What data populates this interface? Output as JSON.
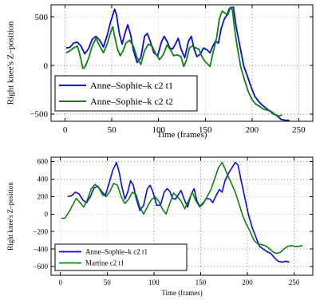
{
  "chart_data": [
    {
      "type": "line",
      "xlabel": "Time (frames)",
      "ylabel": "Right knee's Z–position",
      "xlim": [
        -15,
        265
      ],
      "ylim": [
        -575,
        625
      ],
      "xticks": [
        0,
        50,
        100,
        150,
        200,
        250
      ],
      "yticks": [
        -500,
        0,
        500
      ],
      "grid": true,
      "legend_position": "lower-left",
      "series": [
        {
          "name": "Anne–Sophie–k c2 t1",
          "color": "#0a0adc",
          "points": [
            [
              1,
              180
            ],
            [
              5,
              185
            ],
            [
              9,
              230
            ],
            [
              13,
              240
            ],
            [
              17,
              200
            ],
            [
              21,
              120
            ],
            [
              25,
              170
            ],
            [
              29,
              270
            ],
            [
              33,
              300
            ],
            [
              37,
              260
            ],
            [
              41,
              190
            ],
            [
              45,
              310
            ],
            [
              49,
              460
            ],
            [
              53,
              580
            ],
            [
              55,
              520
            ],
            [
              58,
              330
            ],
            [
              61,
              220
            ],
            [
              64,
              330
            ],
            [
              67,
              420
            ],
            [
              70,
              320
            ],
            [
              73,
              160
            ],
            [
              77,
              30
            ],
            [
              81,
              80
            ],
            [
              85,
              300
            ],
            [
              88,
              330
            ],
            [
              91,
              250
            ],
            [
              95,
              130
            ],
            [
              99,
              100
            ],
            [
              103,
              240
            ],
            [
              106,
              300
            ],
            [
              109,
              250
            ],
            [
              112,
              180
            ],
            [
              115,
              170
            ],
            [
              118,
              220
            ],
            [
              121,
              280
            ],
            [
              124,
              170
            ],
            [
              128,
              80
            ],
            [
              132,
              250
            ],
            [
              135,
              300
            ],
            [
              138,
              170
            ],
            [
              141,
              90
            ],
            [
              145,
              120
            ],
            [
              148,
              180
            ],
            [
              152,
              160
            ],
            [
              155,
              130
            ],
            [
              158,
              200
            ],
            [
              161,
              250
            ],
            [
              164,
              230
            ],
            [
              167,
              380
            ],
            [
              170,
              470
            ],
            [
              173,
              520
            ],
            [
              176,
              590
            ],
            [
              180,
              600
            ],
            [
              183,
              400
            ],
            [
              187,
              200
            ],
            [
              191,
              0
            ],
            [
              195,
              -110
            ],
            [
              199,
              -220
            ],
            [
              203,
              -320
            ],
            [
              207,
              -370
            ],
            [
              211,
              -410
            ],
            [
              215,
              -440
            ],
            [
              219,
              -470
            ],
            [
              223,
              -500
            ],
            [
              227,
              -520
            ],
            [
              231,
              -555
            ],
            [
              236,
              -565
            ],
            [
              240,
              -565
            ]
          ]
        },
        {
          "name": "Anne–Sophie–k c2 t2",
          "color": "#0d820d",
          "points": [
            [
              1,
              130
            ],
            [
              5,
              150
            ],
            [
              9,
              180
            ],
            [
              13,
              200
            ],
            [
              15,
              140
            ],
            [
              17,
              60
            ],
            [
              19,
              -30
            ],
            [
              21,
              -20
            ],
            [
              25,
              70
            ],
            [
              29,
              200
            ],
            [
              33,
              280
            ],
            [
              37,
              200
            ],
            [
              41,
              130
            ],
            [
              45,
              220
            ],
            [
              49,
              350
            ],
            [
              51,
              400
            ],
            [
              53,
              300
            ],
            [
              56,
              170
            ],
            [
              59,
              100
            ],
            [
              62,
              150
            ],
            [
              65,
              230
            ],
            [
              69,
              260
            ],
            [
              73,
              200
            ],
            [
              77,
              80
            ],
            [
              81,
              10
            ],
            [
              85,
              150
            ],
            [
              89,
              220
            ],
            [
              93,
              200
            ],
            [
              97,
              120
            ],
            [
              101,
              60
            ],
            [
              105,
              110
            ],
            [
              109,
              210
            ],
            [
              113,
              160
            ],
            [
              116,
              100
            ],
            [
              120,
              110
            ],
            [
              124,
              90
            ],
            [
              127,
              -10
            ],
            [
              130,
              60
            ],
            [
              133,
              180
            ],
            [
              136,
              200
            ],
            [
              140,
              180
            ],
            [
              143,
              170
            ],
            [
              146,
              100
            ],
            [
              149,
              50
            ],
            [
              152,
              20
            ],
            [
              155,
              -10
            ],
            [
              158,
              120
            ],
            [
              162,
              280
            ],
            [
              165,
              480
            ],
            [
              168,
              560
            ],
            [
              171,
              540
            ],
            [
              174,
              520
            ],
            [
              177,
              600
            ],
            [
              179,
              570
            ],
            [
              181,
              400
            ],
            [
              184,
              200
            ],
            [
              188,
              -20
            ],
            [
              192,
              -150
            ],
            [
              196,
              -270
            ],
            [
              200,
              -350
            ],
            [
              204,
              -400
            ],
            [
              208,
              -420
            ],
            [
              212,
              -450
            ],
            [
              216,
              -460
            ],
            [
              220,
              -470
            ],
            [
              224,
              -500
            ],
            [
              228,
              -520
            ],
            [
              232,
              -510
            ]
          ]
        }
      ]
    },
    {
      "type": "line",
      "xlabel": "Time (frames)",
      "ylabel": "Right knee's Z–position",
      "xlim": [
        -10,
        270
      ],
      "ylim": [
        -700,
        650
      ],
      "xticks": [
        0,
        50,
        100,
        150,
        200,
        250
      ],
      "yticks": [
        -600,
        -400,
        -200,
        0,
        200,
        400,
        600
      ],
      "grid": true,
      "legend_position": "lower-left",
      "series": [
        {
          "name": "Anne–Sophie–k c2 t1",
          "color": "#0a0adc",
          "points": [
            [
              8,
              200
            ],
            [
              12,
              210
            ],
            [
              16,
              250
            ],
            [
              20,
              230
            ],
            [
              24,
              160
            ],
            [
              28,
              130
            ],
            [
              32,
              200
            ],
            [
              36,
              300
            ],
            [
              40,
              320
            ],
            [
              44,
              260
            ],
            [
              48,
              210
            ],
            [
              52,
              350
            ],
            [
              56,
              500
            ],
            [
              60,
              590
            ],
            [
              63,
              470
            ],
            [
              66,
              300
            ],
            [
              69,
              170
            ],
            [
              72,
              250
            ],
            [
              75,
              380
            ],
            [
              78,
              330
            ],
            [
              81,
              180
            ],
            [
              85,
              40
            ],
            [
              89,
              100
            ],
            [
              93,
              290
            ],
            [
              96,
              330
            ],
            [
              99,
              250
            ],
            [
              103,
              100
            ],
            [
              107,
              100
            ],
            [
              111,
              250
            ],
            [
              114,
              290
            ],
            [
              117,
              260
            ],
            [
              120,
              180
            ],
            [
              123,
              170
            ],
            [
              126,
              220
            ],
            [
              129,
              270
            ],
            [
              132,
              180
            ],
            [
              136,
              80
            ],
            [
              140,
              230
            ],
            [
              143,
              290
            ],
            [
              146,
              150
            ],
            [
              149,
              90
            ],
            [
              153,
              130
            ],
            [
              156,
              180
            ],
            [
              160,
              170
            ],
            [
              163,
              130
            ],
            [
              166,
              200
            ],
            [
              170,
              280
            ],
            [
              173,
              250
            ],
            [
              176,
              380
            ],
            [
              180,
              470
            ],
            [
              183,
              520
            ],
            [
              187,
              590
            ],
            [
              190,
              560
            ],
            [
              193,
              400
            ],
            [
              197,
              200
            ],
            [
              201,
              0
            ],
            [
              205,
              -150
            ],
            [
              209,
              -260
            ],
            [
              213,
              -370
            ],
            [
              217,
              -400
            ],
            [
              221,
              -430
            ],
            [
              225,
              -450
            ],
            [
              229,
              -500
            ],
            [
              233,
              -540
            ],
            [
              237,
              -550
            ],
            [
              241,
              -540
            ],
            [
              245,
              -550
            ]
          ]
        },
        {
          "name": "Martine c2 t1",
          "color": "#0d820d",
          "points": [
            [
              1,
              -50
            ],
            [
              5,
              -45
            ],
            [
              9,
              20
            ],
            [
              13,
              100
            ],
            [
              17,
              180
            ],
            [
              21,
              130
            ],
            [
              25,
              80
            ],
            [
              29,
              170
            ],
            [
              33,
              290
            ],
            [
              37,
              340
            ],
            [
              41,
              300
            ],
            [
              45,
              220
            ],
            [
              49,
              200
            ],
            [
              53,
              260
            ],
            [
              57,
              350
            ],
            [
              61,
              330
            ],
            [
              65,
              200
            ],
            [
              69,
              120
            ],
            [
              73,
              170
            ],
            [
              77,
              250
            ],
            [
              81,
              220
            ],
            [
              85,
              80
            ],
            [
              89,
              0
            ],
            [
              93,
              80
            ],
            [
              97,
              160
            ],
            [
              101,
              200
            ],
            [
              105,
              150
            ],
            [
              109,
              60
            ],
            [
              113,
              0
            ],
            [
              117,
              120
            ],
            [
              121,
              240
            ],
            [
              125,
              200
            ],
            [
              129,
              150
            ],
            [
              133,
              60
            ],
            [
              137,
              150
            ],
            [
              141,
              250
            ],
            [
              145,
              150
            ],
            [
              149,
              80
            ],
            [
              153,
              120
            ],
            [
              157,
              200
            ],
            [
              161,
              280
            ],
            [
              165,
              400
            ],
            [
              169,
              530
            ],
            [
              173,
              590
            ],
            [
              176,
              520
            ],
            [
              179,
              440
            ],
            [
              183,
              350
            ],
            [
              187,
              250
            ],
            [
              191,
              120
            ],
            [
              195,
              -20
            ],
            [
              199,
              -120
            ],
            [
              203,
              -200
            ],
            [
              207,
              -300
            ],
            [
              211,
              -340
            ],
            [
              215,
              -350
            ],
            [
              219,
              -360
            ],
            [
              223,
              -390
            ],
            [
              227,
              -430
            ],
            [
              231,
              -450
            ],
            [
              235,
              -440
            ],
            [
              239,
              -400
            ],
            [
              243,
              -370
            ],
            [
              247,
              -360
            ],
            [
              251,
              -370
            ],
            [
              255,
              -370
            ],
            [
              259,
              -360
            ]
          ]
        }
      ]
    }
  ]
}
